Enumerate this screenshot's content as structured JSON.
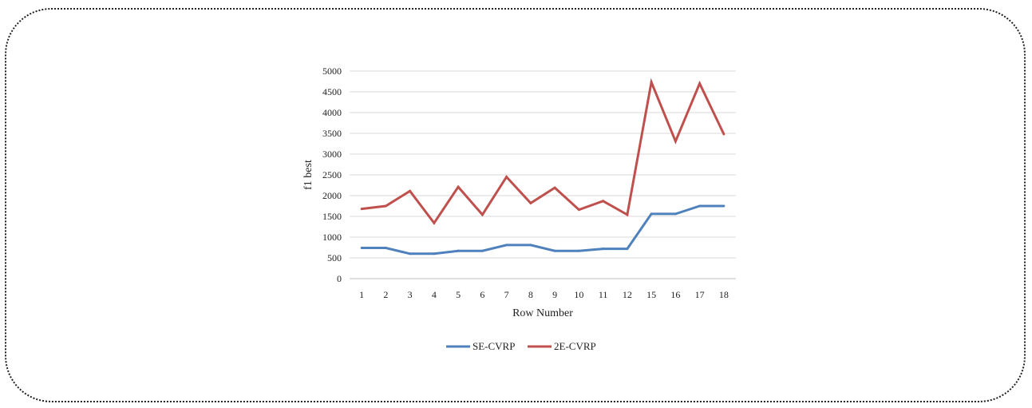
{
  "chart_data": {
    "type": "line",
    "title": "",
    "xlabel": "Row Number",
    "ylabel": "f1 best",
    "categories": [
      "1",
      "2",
      "3",
      "4",
      "5",
      "6",
      "7",
      "8",
      "9",
      "10",
      "11",
      "12",
      "15",
      "16",
      "17",
      "18"
    ],
    "ylim": [
      0,
      5000
    ],
    "yticks": [
      0,
      500,
      1000,
      1500,
      2000,
      2500,
      3000,
      3500,
      4000,
      4500,
      5000
    ],
    "grid": "horizontal",
    "legend_position": "bottom",
    "series": [
      {
        "name": "SE-CVRP",
        "color": "#4f81bd",
        "values": [
          740,
          740,
          600,
          600,
          670,
          670,
          810,
          810,
          670,
          670,
          720,
          720,
          1560,
          1560,
          1750,
          1750
        ]
      },
      {
        "name": "2E-CVRP",
        "color": "#c0504d",
        "values": [
          1680,
          1750,
          2110,
          1340,
          2210,
          1540,
          2450,
          1820,
          2190,
          1660,
          1870,
          1540,
          4730,
          3310,
          4700,
          3480
        ]
      }
    ]
  }
}
